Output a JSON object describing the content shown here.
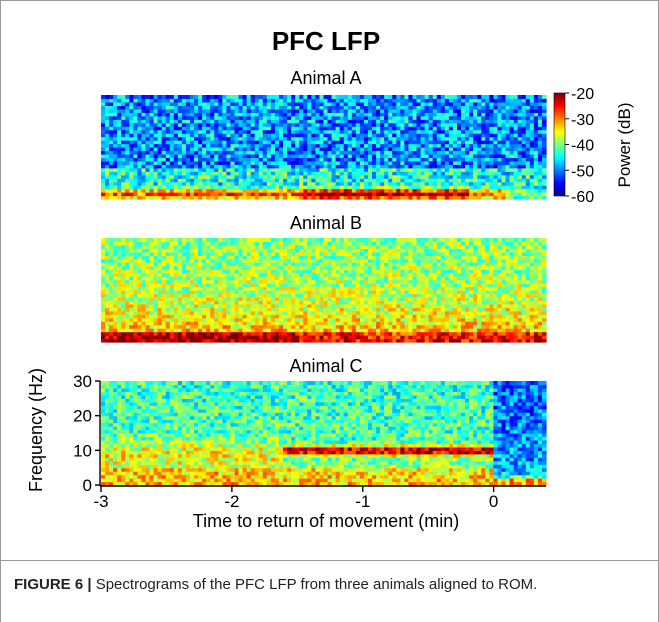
{
  "figure": {
    "title": "PFC LFP",
    "caption_label": "FIGURE 6 |",
    "caption_text": " Spectrograms of the PFC LFP from three animals aligned to ROM."
  },
  "colors": {
    "jet": [
      "#00008f",
      "#0000ff",
      "#007fff",
      "#00ffff",
      "#7fff7f",
      "#ffff00",
      "#ff7f00",
      "#ff0000",
      "#7f0000"
    ]
  },
  "chart_data": {
    "type": "heatmap",
    "title": "PFC LFP",
    "colorbar": {
      "label": "Power (dB)",
      "range": [
        -60,
        -20
      ],
      "ticks": [
        -20,
        -30,
        -40,
        -50,
        -60
      ],
      "colormap": "jet"
    },
    "panels": [
      {
        "name": "Animal A",
        "x_range": [
          -3,
          0.4
        ],
        "y_range": [
          0,
          30
        ],
        "profile": "low frequency band near 1-3 Hz around -25 dB with background near -48 dB, strongest between -1.5 and -0.2 min"
      },
      {
        "name": "Animal B",
        "x_range": [
          -3,
          0.4
        ],
        "y_range": [
          0,
          30
        ],
        "profile": "broad low-frequency power near -28 dB fading to about -40 dB at 30 Hz"
      },
      {
        "name": "Animal C",
        "x_range": [
          -3,
          0.4
        ],
        "y_range": [
          0,
          30
        ],
        "profile": "band near 10 Hz around -22 dB from -1.6 to 0 min; power drops after 0 min with low-frequency band near 1 Hz",
        "xlabel": "Time to return of movement (min)",
        "ylabel": "Frequency (Hz)",
        "xticks": [
          -3,
          -2,
          -1,
          0
        ],
        "yticks": [
          0,
          10,
          20,
          30
        ]
      }
    ]
  }
}
